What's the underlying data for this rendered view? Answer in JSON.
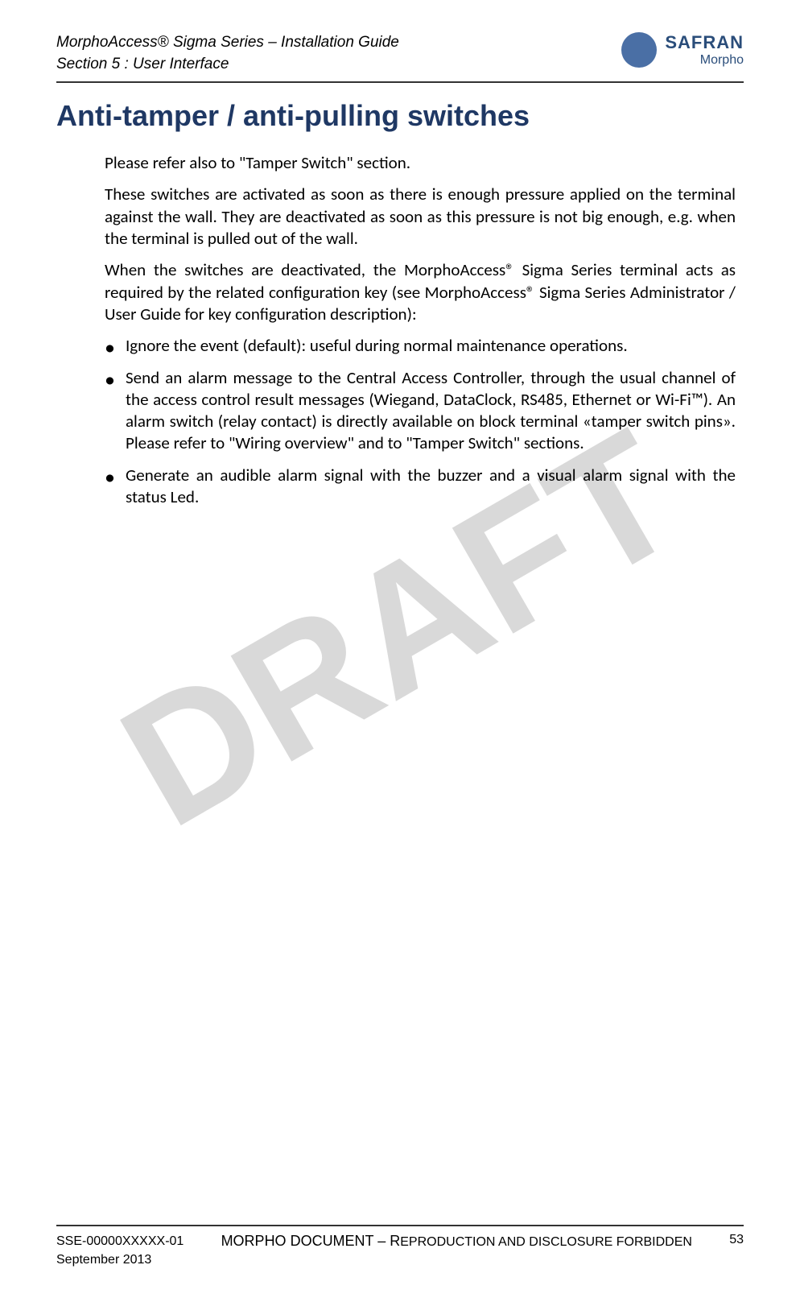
{
  "header": {
    "title_line1": "MorphoAccess® Sigma Series – Installation Guide",
    "title_line2": "Section 5 : User Interface",
    "brand_top": "SAFRAN",
    "brand_bottom": "Morpho"
  },
  "watermark": "DRAFT",
  "heading": "Anti-tamper / anti-pulling switches",
  "paragraphs": {
    "p1": "Please refer also to \"Tamper Switch\" section.",
    "p2": "These switches are activated as soon as there is enough pressure applied on the terminal against the wall. They are deactivated as soon as this pressure is not big enough, e.g. when the terminal is pulled out of the wall.",
    "p3": "When the switches are deactivated, the MorphoAccess® Sigma Series terminal acts as required by the related configuration key (see MorphoAccess® Sigma Series Administrator / User Guide for key configuration description):"
  },
  "bullets": {
    "b1": "Ignore the event (default): useful during normal maintenance operations.",
    "b2": "Send an alarm message to the Central Access Controller, through the usual channel of the access control result messages (Wiegand, DataClock, RS485, Ethernet or Wi-Fi™). An alarm switch (relay contact) is directly available on block terminal «tamper switch pins». Please refer to \"Wiring overview\" and to \"Tamper Switch\" sections.",
    "b3": "Generate an audible alarm signal with the buzzer and a visual alarm signal with the status Led."
  },
  "footer": {
    "doc_id": "SSE-00000XXXXX-01",
    "date": "September 2013",
    "center_prefix": "MORPHO DOCUMENT – R",
    "center_suffix": "EPRODUCTION AND DISCLOSURE FORBIDDEN",
    "page": "53"
  },
  "colors": {
    "heading_color": "#1f3864",
    "text_color": "#000000",
    "watermark_color": "#d9d9d9",
    "logo_color": "#4a6fa5",
    "brand_color": "#2a4d7a"
  }
}
